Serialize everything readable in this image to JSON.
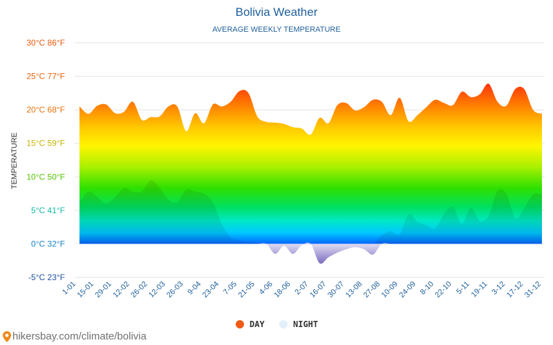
{
  "chart_data": {
    "type": "area",
    "title": "Bolivia Weather",
    "subtitle": "AVERAGE WEEKLY TEMPERATURE",
    "ylabel": "TEMPERATURE",
    "ylim": [
      -5,
      30
    ],
    "yticks": [
      {
        "value": 30,
        "label": "30°C 86°F",
        "color": "#e8580c"
      },
      {
        "value": 25,
        "label": "25°C 77°F",
        "color": "#e8620c"
      },
      {
        "value": 20,
        "label": "20°C 68°F",
        "color": "#e8720c"
      },
      {
        "value": 15,
        "label": "15°C 59°F",
        "color": "#c8b400"
      },
      {
        "value": 10,
        "label": "10°C 50°F",
        "color": "#52c400"
      },
      {
        "value": 5,
        "label": "5°C 41°F",
        "color": "#14b8a8"
      },
      {
        "value": 0,
        "label": "0°C 32°F",
        "color": "#1780c8"
      },
      {
        "value": -5,
        "label": "-5°C 23°F",
        "color": "#1e4fa0"
      }
    ],
    "x_tick_labels": [
      "1-01",
      "15-01",
      "29-01",
      "12-02",
      "26-02",
      "12-03",
      "26-03",
      "9-04",
      "23-04",
      "7-05",
      "21-05",
      "4-06",
      "18-06",
      "2-07",
      "16-07",
      "30-07",
      "13-08",
      "27-08",
      "10-09",
      "24-09",
      "8-10",
      "22-10",
      "5-11",
      "19-11",
      "3-12",
      "17-12",
      "31-12"
    ],
    "series": [
      {
        "name": "DAY",
        "color": "#f05a14",
        "values": [
          20.5,
          19.4,
          20.6,
          20.8,
          19.5,
          19.7,
          21.2,
          18.5,
          18.9,
          19.0,
          20.5,
          20.5,
          16.8,
          19.5,
          18.0,
          20.8,
          20.5,
          21.2,
          22.8,
          22.5,
          19.0,
          18.2,
          18.1,
          17.9,
          17.4,
          17.2,
          16.3,
          18.8,
          18.0,
          20.7,
          21.0,
          19.9,
          20.4,
          21.5,
          21.2,
          19.2,
          21.8,
          18.3,
          19.2,
          20.4,
          21.5,
          21.0,
          20.7,
          22.7,
          21.9,
          22.3,
          23.9,
          21.2,
          20.6,
          23.1,
          23.1,
          20.0,
          19.4
        ]
      },
      {
        "name": "NIGHT",
        "color": "#e2eef8",
        "values": [
          6.2,
          7.8,
          7.0,
          6.0,
          7.0,
          8.3,
          7.8,
          7.8,
          9.5,
          8.4,
          6.6,
          6.2,
          8.1,
          7.8,
          7.5,
          6.2,
          3.0,
          1.0,
          0.5,
          0.3,
          0.1,
          0,
          -1.5,
          -0.3,
          -1.5,
          -0.2,
          0,
          -2.9,
          -2.0,
          -1.3,
          -0.8,
          -0.5,
          -0.8,
          -1.6,
          1.3,
          1.9,
          1.4,
          4.4,
          3.3,
          2.8,
          2.3,
          4.5,
          5.5,
          3.0,
          5.4,
          3.4,
          4.2,
          7.9,
          7.5,
          3.8,
          5.3,
          7.4,
          7.4
        ]
      }
    ],
    "legend": {
      "placement": "bottom"
    },
    "grid": true
  },
  "source": "hikersbay.com/climate/bolivia"
}
